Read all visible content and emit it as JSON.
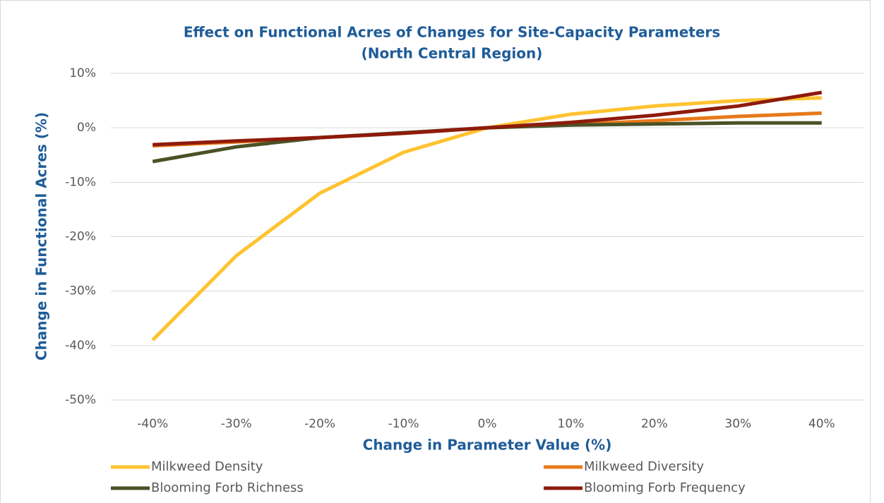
{
  "chart_data": {
    "type": "line",
    "title": [
      "Effect on Functional Acres of Changes for Site-Capacity Parameters",
      "(North Central Region)"
    ],
    "x_label": "Change in Parameter Value (%)",
    "y_label": "Change in Functional Acres (%)",
    "categories": [
      "-40%",
      "-30%",
      "-20%",
      "-10%",
      "0%",
      "10%",
      "20%",
      "30%",
      "40%"
    ],
    "series": [
      {
        "name": "Milkweed Density",
        "color": "#FFC331",
        "values": [
          -39,
          -23.5,
          -12,
          -4.5,
          0,
          2.5,
          4,
          5,
          5.5
        ]
      },
      {
        "name": "Milkweed Diversity",
        "color": "#E8791A",
        "values": [
          -3.3,
          -2.6,
          -1.8,
          -1,
          0,
          0.6,
          1.3,
          2.1,
          2.7
        ]
      },
      {
        "name": "Blooming Forb Richness",
        "color": "#4A5226",
        "values": [
          -6.2,
          -3.5,
          -1.8,
          -0.9,
          0,
          0.5,
          0.7,
          0.9,
          0.9
        ]
      },
      {
        "name": "Blooming Forb Frequency",
        "color": "#8E1B0B",
        "values": [
          -3.1,
          -2.4,
          -1.8,
          -1,
          0,
          1,
          2.3,
          4,
          6.5
        ]
      }
    ],
    "ylim": [
      -50,
      10
    ],
    "yticks": [
      {
        "value": -50,
        "label": "-50%"
      },
      {
        "value": -40,
        "label": "-40%"
      },
      {
        "value": -30,
        "label": "-30%"
      },
      {
        "value": -20,
        "label": "-20%"
      },
      {
        "value": -10,
        "label": "-10%"
      },
      {
        "value": 0,
        "label": "0%"
      },
      {
        "value": 10,
        "label": "10%"
      }
    ],
    "grid": true,
    "legend": "bottom"
  }
}
